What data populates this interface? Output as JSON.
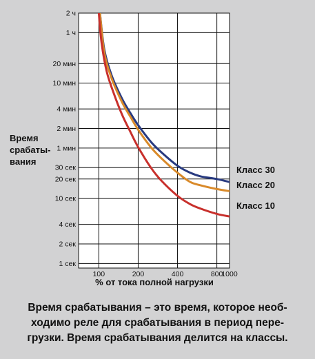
{
  "chart_data": {
    "type": "line",
    "title": "",
    "ylabel_lines": [
      "Время",
      "срабаты-",
      "вания"
    ],
    "xlabel": "% от тока полной нагрузки",
    "x_ticks": [
      {
        "value": 100,
        "label": "100"
      },
      {
        "value": 200,
        "label": "200"
      },
      {
        "value": 400,
        "label": "400"
      },
      {
        "value": 800,
        "label": "800"
      },
      {
        "value": 1000,
        "label": "1000"
      }
    ],
    "x_scale": "log",
    "xlim": [
      70,
      1000
    ],
    "y_scale": "log",
    "y_unit": "seconds",
    "ylim": [
      0.85,
      7200
    ],
    "y_ticks": [
      {
        "value": 7200,
        "label": "2 ч"
      },
      {
        "value": 3600,
        "label": "1 ч"
      },
      {
        "value": 1200,
        "label": "20 мин"
      },
      {
        "value": 600,
        "label": "10 мин"
      },
      {
        "value": 240,
        "label": "4 мин"
      },
      {
        "value": 120,
        "label": "2 мин"
      },
      {
        "value": 60,
        "label": "1 мин"
      },
      {
        "value": 30,
        "label": "30 сек"
      },
      {
        "value": 20,
        "label": "20 сек"
      },
      {
        "value": 10,
        "label": "10 сек"
      },
      {
        "value": 4,
        "label": "4 сек"
      },
      {
        "value": 2,
        "label": "2 сек"
      },
      {
        "value": 1,
        "label": "1 сек"
      }
    ],
    "grid": true,
    "series": [
      {
        "name": "Класс 30",
        "color": "#283a80",
        "x": [
          102,
          110,
          125,
          150,
          175,
          200,
          250,
          300,
          400,
          500,
          600,
          800,
          1000
        ],
        "y": [
          7200,
          2000,
          800,
          350,
          205,
          135,
          75,
          52,
          32,
          25,
          22,
          20,
          18
        ]
      },
      {
        "name": "Класс 20",
        "color": "#d98a2a",
        "x": [
          102,
          110,
          125,
          150,
          175,
          200,
          250,
          300,
          400,
          500,
          600,
          800,
          1000
        ],
        "y": [
          7200,
          1800,
          720,
          310,
          180,
          115,
          62,
          42,
          25,
          18,
          16,
          14,
          13
        ]
      },
      {
        "name": "Класс 10",
        "color": "#c8302c",
        "x": [
          100,
          105,
          115,
          130,
          150,
          175,
          200,
          250,
          300,
          400,
          500,
          600,
          800,
          1000
        ],
        "y": [
          7200,
          2500,
          900,
          420,
          200,
          105,
          62,
          30,
          19,
          11,
          8.2,
          7,
          5.8,
          5.3
        ]
      }
    ],
    "legend": "right-end-of-lines"
  },
  "caption_lines": [
    "Время срабатывания – это время, которое необ-",
    "ходимо реле для срабатывания в период пере-",
    "грузки. Время срабатывания делится на классы."
  ]
}
